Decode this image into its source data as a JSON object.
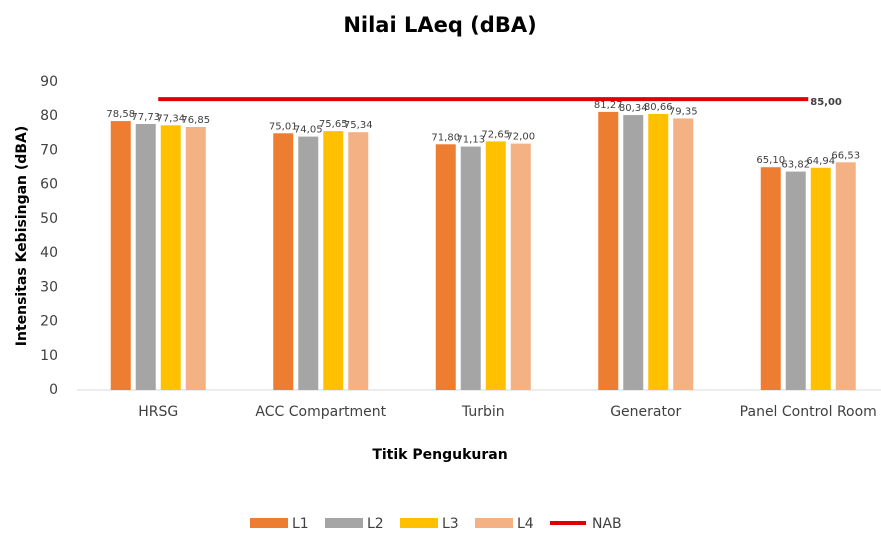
{
  "chart_data": {
    "type": "bar",
    "title": "Nilai LAeq (dBA)",
    "x_label": "Titik Pengukuran",
    "y_label": "Intensitas Kebisingan (dBA)",
    "categories": [
      "HRSG",
      "ACC Compartment",
      "Turbin",
      "Generator",
      "Panel Control Room"
    ],
    "series": [
      {
        "name": "L1",
        "color": "#ed7d31",
        "values": [
          78.58,
          75.01,
          71.8,
          81.27,
          65.1
        ],
        "value_labels": [
          "78,58",
          "75,01",
          "71,80",
          "81,27",
          "65,10"
        ]
      },
      {
        "name": "L2",
        "color": "#a5a5a5",
        "values": [
          77.73,
          74.05,
          71.13,
          80.34,
          63.82
        ],
        "value_labels": [
          "77,73",
          "74,05",
          "71,13",
          "80,34",
          "63,82"
        ]
      },
      {
        "name": "L3",
        "color": "#ffc000",
        "values": [
          77.34,
          75.65,
          72.65,
          80.66,
          64.94
        ],
        "value_labels": [
          "77,34",
          "75,65",
          "72,65",
          "80,66",
          "64,94"
        ]
      },
      {
        "name": "L4",
        "color": "#f4b183",
        "values": [
          76.85,
          75.34,
          72.0,
          79.35,
          66.53
        ],
        "value_labels": [
          "76,85",
          "75,34",
          "72,00",
          "79,35",
          "66,53"
        ]
      },
      {
        "name": "NAB",
        "type": "line",
        "color": "#e00000",
        "values": [
          85,
          85,
          85,
          85,
          85
        ],
        "value_labels": [
          null,
          null,
          null,
          null,
          "85,00"
        ]
      }
    ],
    "ylim": [
      0,
      90
    ],
    "yticks": [
      0,
      10,
      20,
      30,
      40,
      50,
      60,
      70,
      80,
      90
    ],
    "grid": false,
    "legend": "bottom"
  }
}
